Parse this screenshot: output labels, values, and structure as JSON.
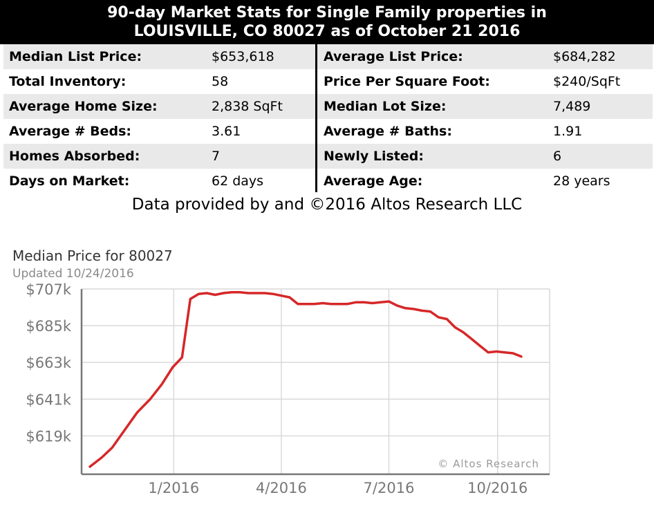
{
  "header": {
    "line1": "90-day Market Stats for Single Family properties in",
    "line2": "LOUISVILLE, CO 80027 as of October 21 2016"
  },
  "stats": [
    [
      {
        "label": "Median List Price:",
        "value": "$653,618"
      },
      {
        "label": "Average List Price:",
        "value": "$684,282"
      }
    ],
    [
      {
        "label": "Total Inventory:",
        "value": "58"
      },
      {
        "label": "Price Per Square Foot:",
        "value": "$240/SqFt"
      }
    ],
    [
      {
        "label": "Average Home Size:",
        "value": "2,838 SqFt"
      },
      {
        "label": "Median Lot Size:",
        "value": "7,489"
      }
    ],
    [
      {
        "label": "Average # Beds:",
        "value": "3.61"
      },
      {
        "label": "Average # Baths:",
        "value": "1.91"
      }
    ],
    [
      {
        "label": "Homes Absorbed:",
        "value": "7"
      },
      {
        "label": "Newly Listed:",
        "value": "6"
      }
    ],
    [
      {
        "label": "Days on Market:",
        "value": "62 days"
      },
      {
        "label": "Average Age:",
        "value": "28 years"
      }
    ]
  ],
  "credit": "Data provided by and ©2016 Altos Research LLC",
  "colors": {
    "line": "#d62728",
    "grid": "#d9d9d9",
    "row_alt": "#e9e9e9"
  },
  "chart_data": {
    "type": "line",
    "title": "Median Price for 80027",
    "subtitle": "Updated 10/24/2016",
    "watermark": "© Altos Research",
    "y_ticks": [
      {
        "value": 619,
        "label": "$619k"
      },
      {
        "value": 641,
        "label": "$641k"
      },
      {
        "value": 663,
        "label": "$663k"
      },
      {
        "value": 685,
        "label": "$685k"
      },
      {
        "value": 707,
        "label": "$707k"
      }
    ],
    "x_ticks": [
      {
        "value": "2016-01-01",
        "label": "1/2016"
      },
      {
        "value": "2016-04-01",
        "label": "4/2016"
      },
      {
        "value": "2016-07-01",
        "label": "7/2016"
      },
      {
        "value": "2016-10-01",
        "label": "10/2016"
      }
    ],
    "xlim": [
      "2015-10-15",
      "2016-11-14"
    ],
    "ylim": [
      596,
      707
    ],
    "grid": true,
    "series": [
      {
        "x": [
          "2015-10-22",
          "2015-11-01",
          "2015-11-10",
          "2015-11-20",
          "2015-12-01",
          "2015-12-12",
          "2015-12-22",
          "2015-12-31",
          "2016-01-08",
          "2016-01-15",
          "2016-01-22",
          "2016-01-29",
          "2016-02-05",
          "2016-02-12",
          "2016-02-19",
          "2016-02-26",
          "2016-03-04",
          "2016-03-11",
          "2016-03-18",
          "2016-03-25",
          "2016-04-01",
          "2016-04-08",
          "2016-04-15",
          "2016-04-22",
          "2016-04-29",
          "2016-05-06",
          "2016-05-13",
          "2016-05-20",
          "2016-05-27",
          "2016-06-03",
          "2016-06-10",
          "2016-06-17",
          "2016-06-24",
          "2016-07-01",
          "2016-07-08",
          "2016-07-15",
          "2016-07-22",
          "2016-07-29",
          "2016-08-05",
          "2016-08-12",
          "2016-08-19",
          "2016-08-26",
          "2016-09-02",
          "2016-09-09",
          "2016-09-16",
          "2016-09-23",
          "2016-09-30",
          "2016-10-07",
          "2016-10-14",
          "2016-10-21"
        ],
        "y": [
          600.5,
          606,
          612,
          622,
          633,
          641,
          650,
          660,
          666,
          701,
          704,
          704.5,
          703.5,
          704.5,
          705,
          705,
          704.5,
          704.5,
          704.5,
          704,
          703,
          702,
          698,
          698,
          698,
          698.5,
          698,
          698,
          698,
          699,
          699,
          698.5,
          699,
          699.5,
          697,
          695.5,
          695,
          694,
          693.5,
          690,
          689,
          684,
          681,
          677,
          673,
          669,
          669.5,
          669,
          668.5,
          666.5
        ]
      }
    ]
  }
}
